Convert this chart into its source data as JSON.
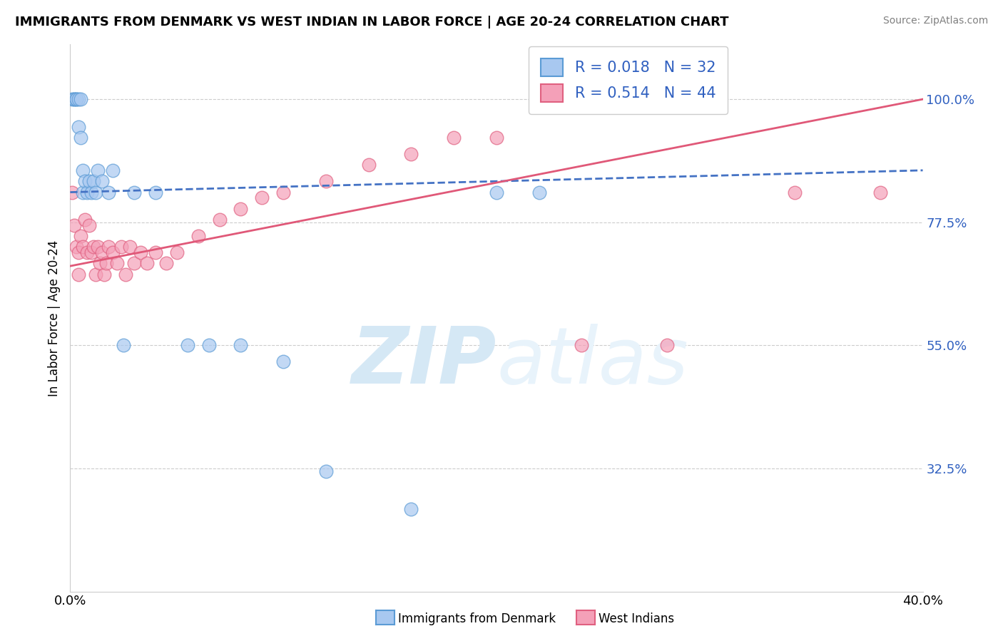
{
  "title": "IMMIGRANTS FROM DENMARK VS WEST INDIAN IN LABOR FORCE | AGE 20-24 CORRELATION CHART",
  "source": "Source: ZipAtlas.com",
  "ylabel": "In Labor Force | Age 20-24",
  "yticks": [
    0.325,
    0.55,
    0.775,
    1.0
  ],
  "ytick_labels": [
    "32.5%",
    "55.0%",
    "77.5%",
    "100.0%"
  ],
  "xlim": [
    0.0,
    0.4
  ],
  "ylim": [
    0.1,
    1.1
  ],
  "denmark_R": 0.018,
  "denmark_N": 32,
  "westindian_R": 0.514,
  "westindian_N": 44,
  "denmark_color": "#a8c8f0",
  "denmark_edge_color": "#5b9bd5",
  "westindian_color": "#f4a0b8",
  "westindian_edge_color": "#e06080",
  "denmark_line_color": "#4472c4",
  "westindian_line_color": "#e05878",
  "denmark_x": [
    0.001,
    0.002,
    0.002,
    0.003,
    0.003,
    0.004,
    0.004,
    0.005,
    0.005,
    0.006,
    0.006,
    0.007,
    0.008,
    0.009,
    0.01,
    0.011,
    0.012,
    0.013,
    0.015,
    0.018,
    0.02,
    0.025,
    0.03,
    0.04,
    0.055,
    0.065,
    0.08,
    0.1,
    0.12,
    0.16,
    0.2,
    0.22
  ],
  "denmark_y": [
    1.0,
    1.0,
    1.0,
    1.0,
    1.0,
    1.0,
    0.95,
    1.0,
    0.93,
    0.87,
    0.83,
    0.85,
    0.83,
    0.85,
    0.83,
    0.85,
    0.83,
    0.87,
    0.85,
    0.83,
    0.87,
    0.55,
    0.83,
    0.83,
    0.55,
    0.55,
    0.55,
    0.52,
    0.32,
    0.25,
    0.83,
    0.83
  ],
  "westindian_x": [
    0.001,
    0.002,
    0.003,
    0.004,
    0.004,
    0.005,
    0.006,
    0.007,
    0.008,
    0.009,
    0.01,
    0.011,
    0.012,
    0.013,
    0.014,
    0.015,
    0.016,
    0.017,
    0.018,
    0.02,
    0.022,
    0.024,
    0.026,
    0.028,
    0.03,
    0.033,
    0.036,
    0.04,
    0.045,
    0.05,
    0.06,
    0.07,
    0.08,
    0.09,
    0.1,
    0.12,
    0.14,
    0.16,
    0.18,
    0.2,
    0.24,
    0.28,
    0.34,
    0.38
  ],
  "westindian_y": [
    0.83,
    0.77,
    0.73,
    0.72,
    0.68,
    0.75,
    0.73,
    0.78,
    0.72,
    0.77,
    0.72,
    0.73,
    0.68,
    0.73,
    0.7,
    0.72,
    0.68,
    0.7,
    0.73,
    0.72,
    0.7,
    0.73,
    0.68,
    0.73,
    0.7,
    0.72,
    0.7,
    0.72,
    0.7,
    0.72,
    0.75,
    0.78,
    0.8,
    0.82,
    0.83,
    0.85,
    0.88,
    0.9,
    0.93,
    0.93,
    0.55,
    0.55,
    0.83,
    0.83
  ],
  "dk_trend_x": [
    0.0,
    0.4
  ],
  "dk_trend_y": [
    0.83,
    0.87
  ],
  "wi_trend_x": [
    0.0,
    0.4
  ],
  "wi_trend_y": [
    0.695,
    1.0
  ],
  "watermark_zip": "ZIP",
  "watermark_atlas": "atlas",
  "watermark_color": "#d5e8f5",
  "stat_color": "#3060c0",
  "grid_color": "#cccccc"
}
